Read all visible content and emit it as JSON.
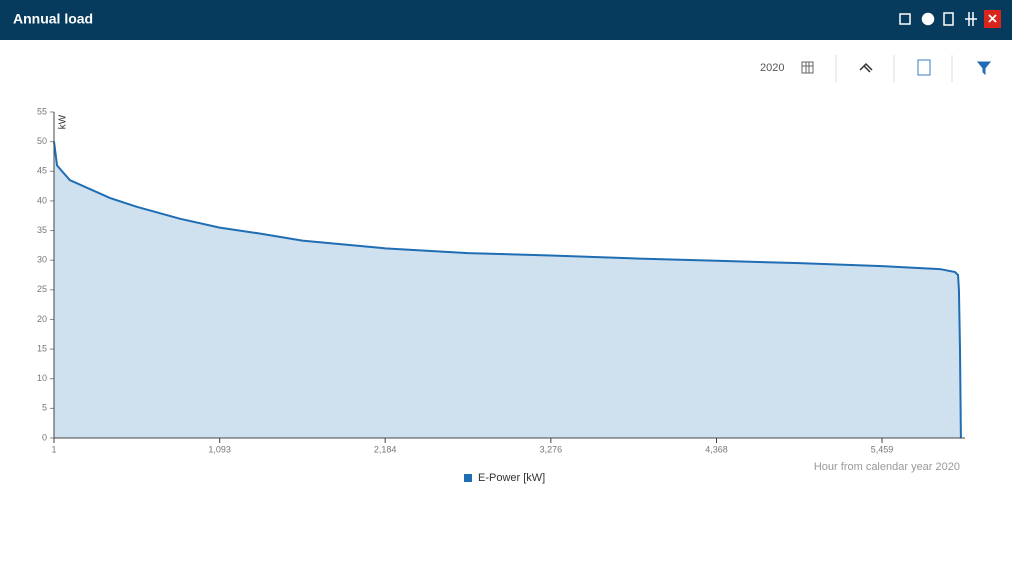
{
  "header": {
    "title": "Annual load"
  },
  "toolbar": {
    "year": "2020"
  },
  "chart_data": {
    "type": "area",
    "y_axis_label": "kW",
    "x_axis_label": "Hour from calendar year 2020",
    "x": [
      1,
      21,
      54,
      106,
      238,
      369,
      547,
      830,
      1093,
      1356,
      1638,
      2184,
      2730,
      3276,
      3822,
      4368,
      4913,
      5459,
      5841,
      5940,
      5960,
      5966,
      5973,
      5979
    ],
    "series": [
      {
        "name": "E-Power [kW]",
        "color": "#1f6db3",
        "values": [
          50,
          46,
          45,
          43.5,
          42,
          40.5,
          39,
          37,
          35.5,
          34.5,
          33.3,
          32,
          31.2,
          30.8,
          30.3,
          29.9,
          29.5,
          29,
          28.5,
          28,
          27.5,
          25,
          15,
          0
        ]
      }
    ],
    "fill_color": "#cfe0ef",
    "xlim": [
      1,
      6006
    ],
    "xticks": [
      1,
      {
        "value": 1093,
        "label": "1,093"
      },
      {
        "value": 2184,
        "label": "2,184"
      },
      {
        "value": 3276,
        "label": "3,276"
      },
      {
        "value": 4368,
        "label": "4,368"
      },
      {
        "value": 5459,
        "label": "5,459"
      }
    ],
    "ylim": [
      0,
      55
    ],
    "yticks": [
      0,
      5,
      10,
      15,
      20,
      25,
      30,
      35,
      40,
      45,
      50,
      55
    ]
  }
}
